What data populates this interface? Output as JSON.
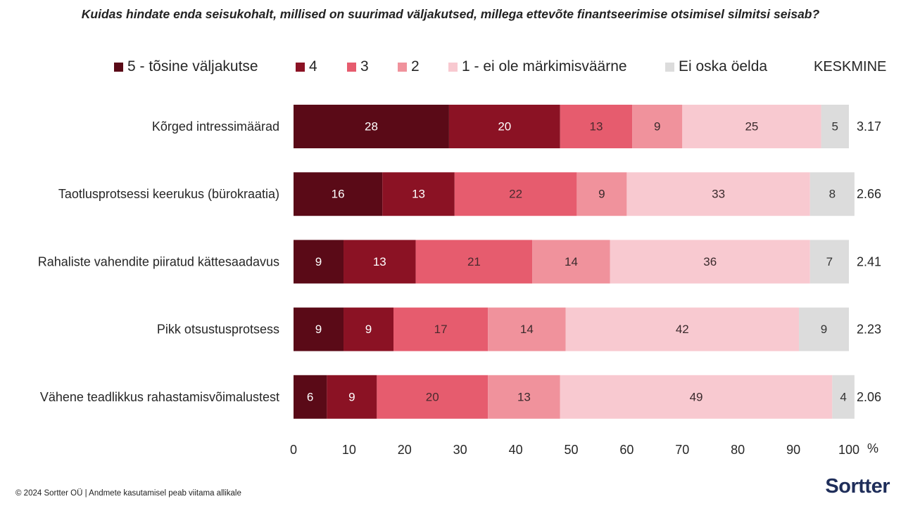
{
  "chart_data": {
    "type": "bar",
    "stacked": true,
    "orientation": "horizontal",
    "title": "Kuidas hindate enda seisukohalt, millised on suurimad väljakutsed, millega ettevõte finantseerimise otsimisel silmitsi seisab?",
    "categories": [
      "Kõrged intressimäärad",
      "Taotlusprotsessi keerukus (bürokraatia)",
      "Rahaliste vahendite piiratud kättesaadavus",
      "Pikk otsustusprotsess",
      "Vähene teadlikkus rahastamisvõimalustest"
    ],
    "series": [
      {
        "name": "5 - tõsine väljakutse",
        "color": "#5a0a17",
        "label_color": "#ffffff",
        "values": [
          28,
          16,
          9,
          9,
          6
        ]
      },
      {
        "name": "4",
        "color": "#8b1224",
        "label_color": "#ffffff",
        "values": [
          20,
          13,
          13,
          9,
          9
        ]
      },
      {
        "name": "3",
        "color": "#e65c6e",
        "label_color": "#4a2a2e",
        "values": [
          13,
          22,
          21,
          17,
          20
        ]
      },
      {
        "name": "2",
        "color": "#f0929c",
        "label_color": "#3a2a2c",
        "values": [
          9,
          9,
          14,
          14,
          13
        ]
      },
      {
        "name": "1 - ei ole märkimisväärne",
        "color": "#f8c9d0",
        "label_color": "#3a2a2c",
        "values": [
          25,
          33,
          36,
          42,
          49
        ]
      },
      {
        "name": "Ei oska öelda",
        "color": "#dcdcdc",
        "label_color": "#333333",
        "values": [
          5,
          8,
          7,
          9,
          4
        ]
      }
    ],
    "average_header": "KESKMINE",
    "averages": [
      "3.17",
      "2.66",
      "2.41",
      "2.23",
      "2.06"
    ],
    "x_ticks": [
      "0",
      "10",
      "20",
      "30",
      "40",
      "50",
      "60",
      "70",
      "80",
      "90",
      "100"
    ],
    "x_unit": "%",
    "xlim": [
      0,
      100
    ]
  },
  "footer": "© 2024 Sortter OÜ | Andmete kasutamisel peab viitama allikale",
  "logo": "Sortter"
}
